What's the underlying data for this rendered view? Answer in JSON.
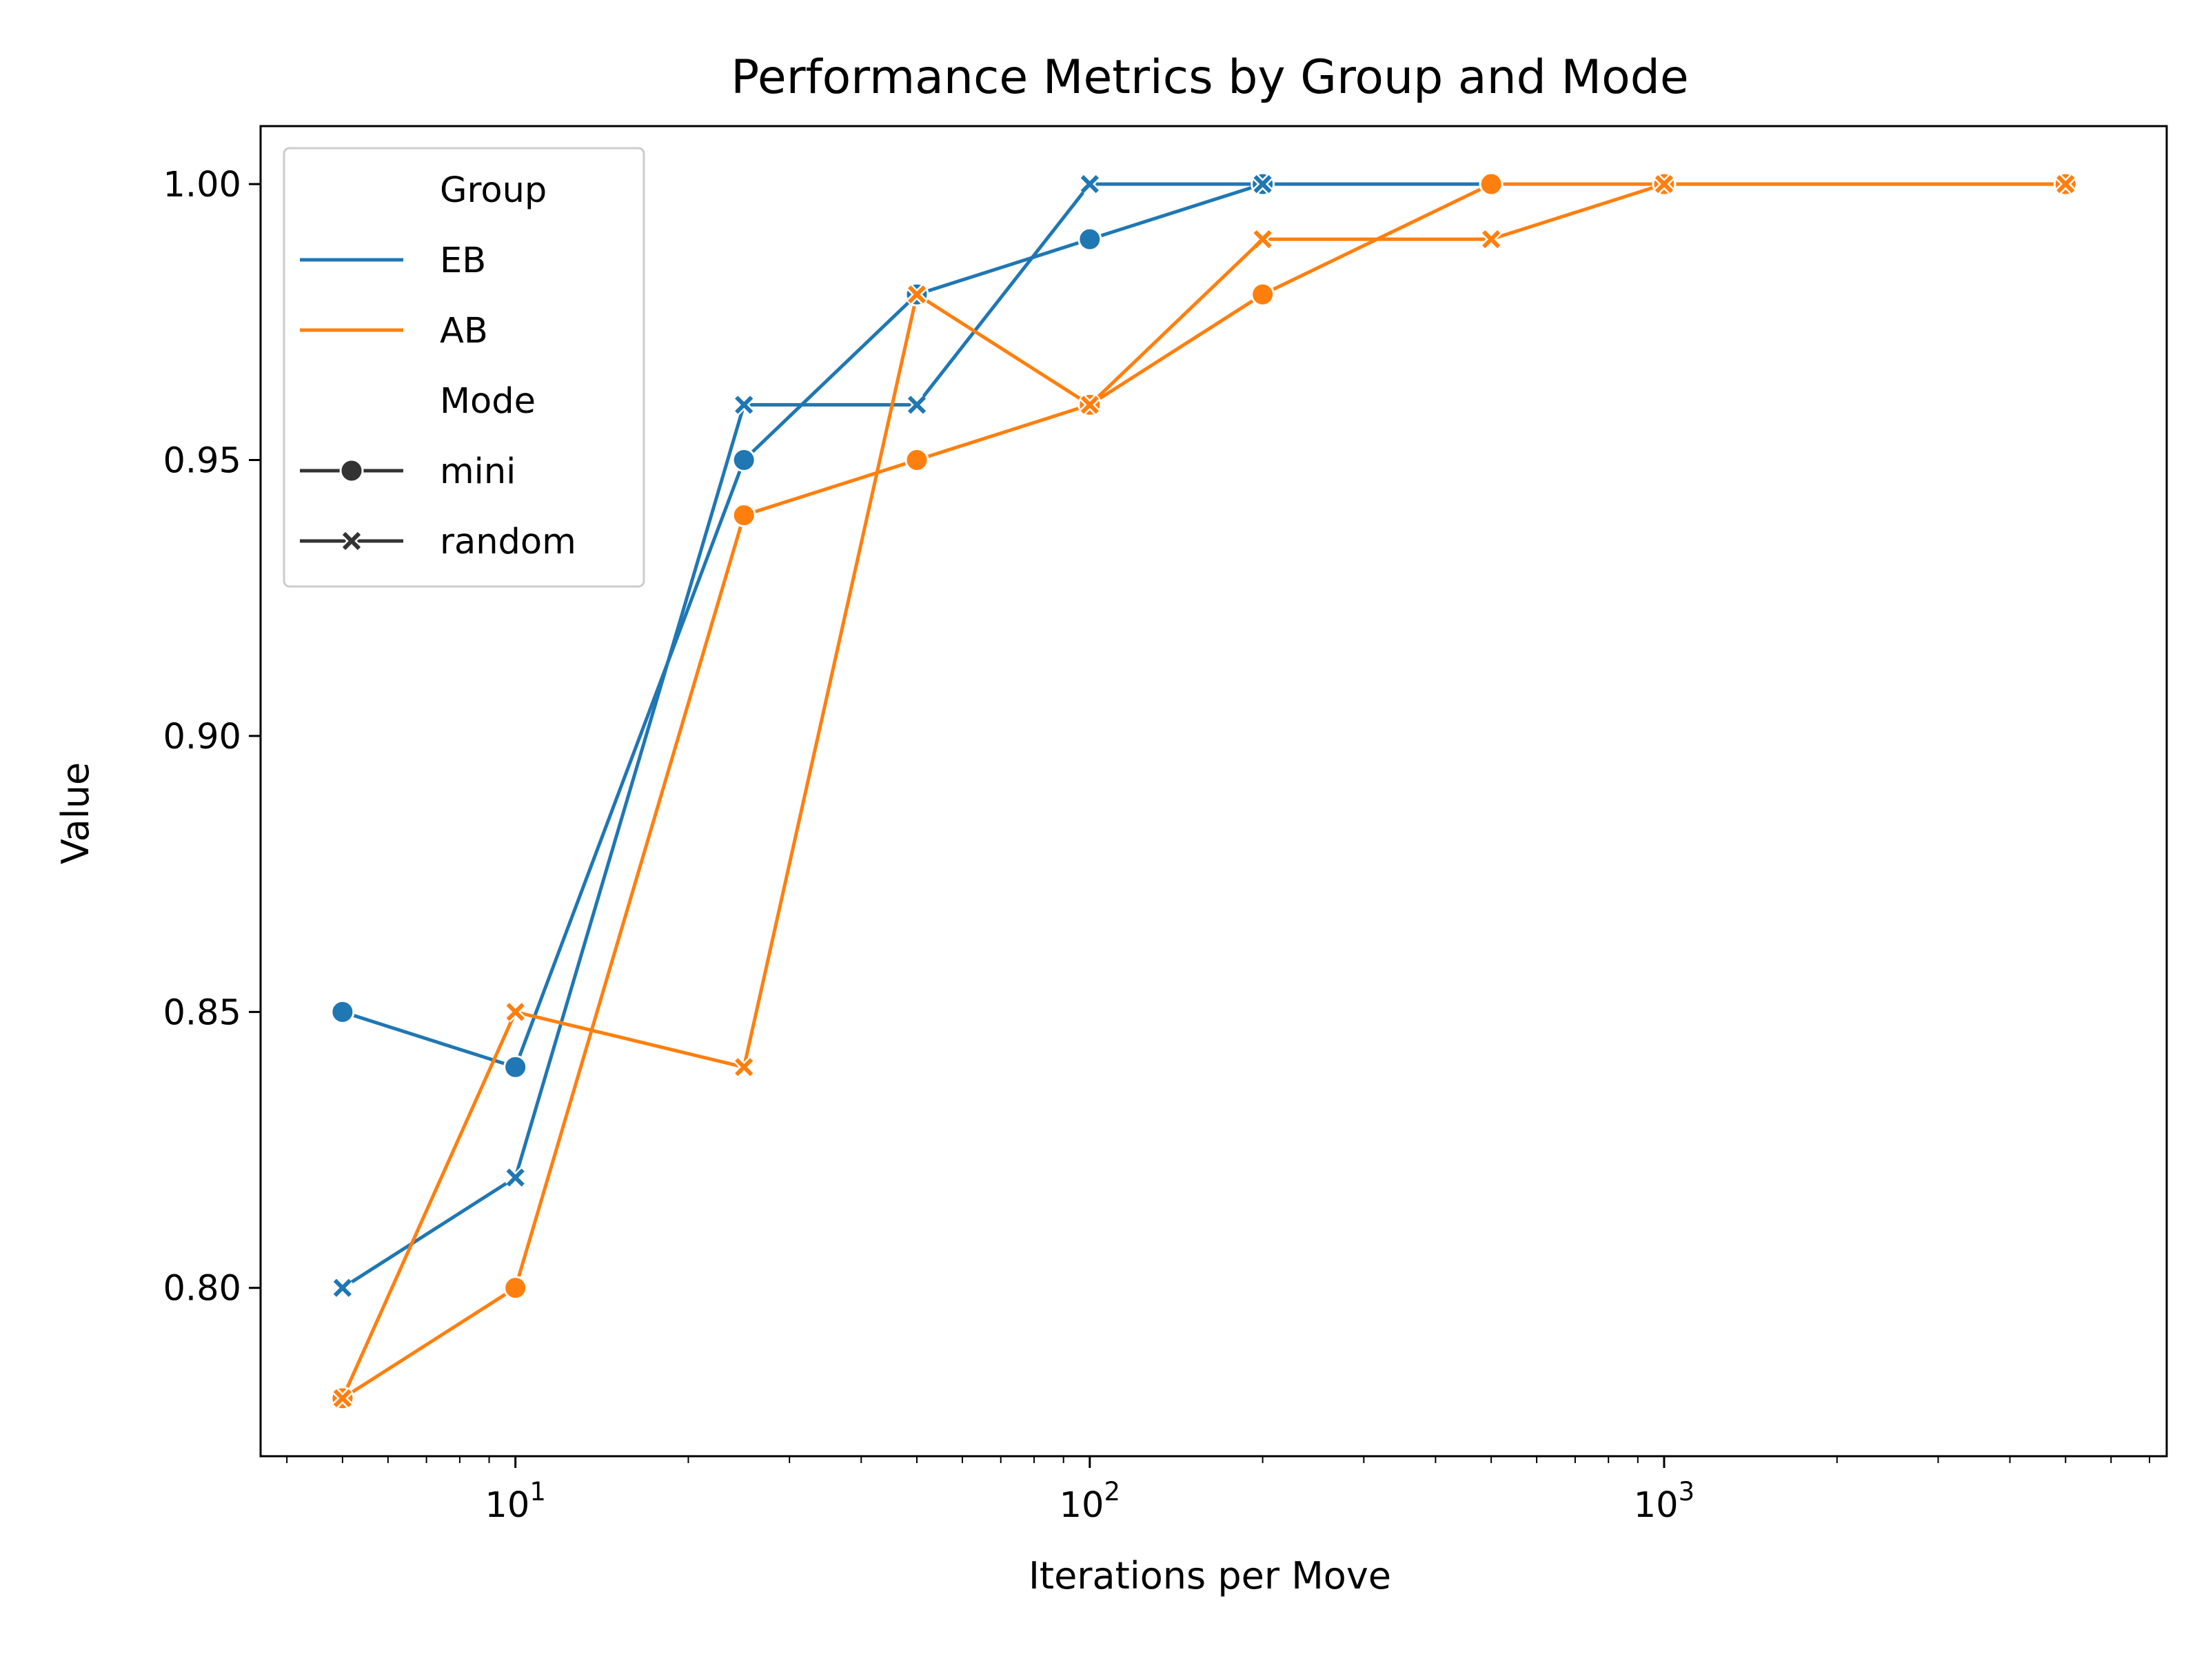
{
  "chart_data": {
    "type": "line",
    "title": "Performance Metrics by Group and Mode",
    "xlabel": "Iterations per Move",
    "ylabel": "Value",
    "xscale": "log",
    "xlim": [
      3.6,
      7500
    ],
    "ylim": [
      0.7695,
      1.0105
    ],
    "yticks": [
      0.8,
      0.85,
      0.9,
      0.95,
      1.0
    ],
    "ytick_labels": [
      "0.80",
      "0.85",
      "0.90",
      "0.95",
      "1.00"
    ],
    "xticks": [
      10,
      100,
      1000
    ],
    "xtick_labels": [
      {
        "base": "10",
        "exp": "1"
      },
      {
        "base": "10",
        "exp": "2"
      },
      {
        "base": "10",
        "exp": "3"
      }
    ],
    "grid": false,
    "legend": {
      "placement": "top-left",
      "group_title": "Group",
      "mode_title": "Mode",
      "groups": [
        {
          "label": "EB",
          "color": "#1f77b4"
        },
        {
          "label": "AB",
          "color": "#ff7f0e"
        }
      ],
      "modes": [
        {
          "label": "mini",
          "marker": "circle"
        },
        {
          "label": "random",
          "marker": "x"
        }
      ]
    },
    "series": [
      {
        "group": "EB",
        "mode": "mini",
        "color": "#1f77b4",
        "marker": "circle",
        "x": [
          5,
          10,
          25,
          50,
          100,
          200,
          500
        ],
        "y": [
          0.85,
          0.84,
          0.95,
          0.98,
          0.99,
          1.0,
          1.0
        ]
      },
      {
        "group": "EB",
        "mode": "random",
        "color": "#1f77b4",
        "marker": "x",
        "x": [
          5,
          10,
          25,
          50,
          100,
          200
        ],
        "y": [
          0.8,
          0.82,
          0.96,
          0.96,
          1.0,
          1.0
        ]
      },
      {
        "group": "AB",
        "mode": "mini",
        "color": "#ff7f0e",
        "marker": "circle",
        "x": [
          5,
          10,
          25,
          50,
          100,
          200,
          500,
          1000,
          5000
        ],
        "y": [
          0.78,
          0.8,
          0.94,
          0.95,
          0.96,
          0.98,
          1.0,
          1.0,
          1.0
        ]
      },
      {
        "group": "AB",
        "mode": "random",
        "color": "#ff7f0e",
        "marker": "x",
        "x": [
          5,
          10,
          25,
          50,
          100,
          200,
          500,
          1000,
          5000
        ],
        "y": [
          0.78,
          0.85,
          0.84,
          0.98,
          0.96,
          0.99,
          0.99,
          1.0,
          1.0
        ]
      }
    ]
  }
}
